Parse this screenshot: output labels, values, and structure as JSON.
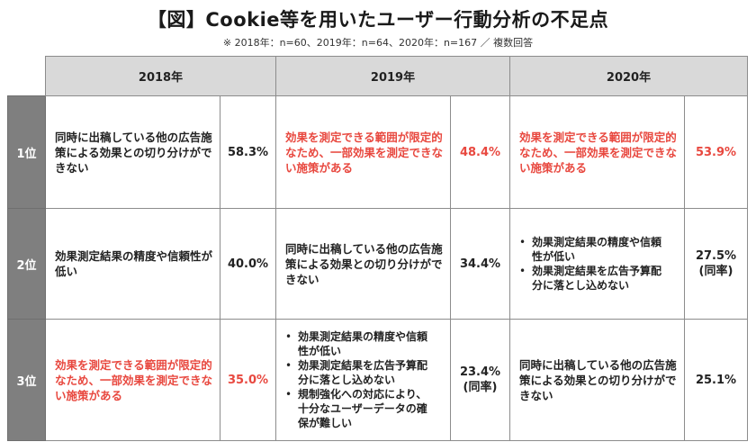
{
  "title": "【図】Cookie等を用いたユーザー行動分析の不足点",
  "subtitle": "※ 2018年：n=60、2019年：n=64、2020年：n=167 ／ 複数回答",
  "years": [
    "2018年",
    "2019年",
    "2020年"
  ],
  "rows": [
    {
      "rank": "1位",
      "y2018": {
        "text": "同時に出稿している他の広告施策による効果との切り分けができない",
        "pct": "58.3%"
      },
      "y2019": {
        "text": "効果を測定できる範囲が限定的なため、一部効果を測定できない施策がある",
        "pct": "48.4%"
      },
      "y2020": {
        "text": "効果を測定できる範囲が限定的なため、一部効果を測定できない施策がある",
        "pct": "53.9%"
      }
    },
    {
      "rank": "2位",
      "y2018": {
        "text": "効果測定結果の精度や信頼性が低い",
        "pct": "40.0%"
      },
      "y2019": {
        "text": "同時に出稿している他の広告施策による効果との切り分けができない",
        "pct": "34.4%"
      },
      "y2020": {
        "bullets": [
          "効果測定結果の精度や信頼性が低い",
          "効果測定結果を広告予算配分に落とし込めない"
        ],
        "pct": "27.5%",
        "pct_note": "(同率)"
      }
    },
    {
      "rank": "3位",
      "y2018": {
        "text": "効果を測定できる範囲が限定的なため、一部効果を測定できない施策がある",
        "pct": "35.0%"
      },
      "y2019": {
        "bullets": [
          "効果測定結果の精度や信頼性が低い",
          "効果測定結果を広告予算配分に落とし込めない",
          "規制強化への対応により、十分なユーザーデータの確保が難しい"
        ],
        "pct": "23.4%",
        "pct_note": "(同率)"
      },
      "y2020": {
        "text": "同時に出稿している他の広告施策による効果との切り分けができない",
        "pct": "25.1%"
      }
    }
  ],
  "colors": {
    "highlight": "#e8483f",
    "header_bg": "#d9d9d9",
    "rank_bg": "#7f7f7f"
  }
}
